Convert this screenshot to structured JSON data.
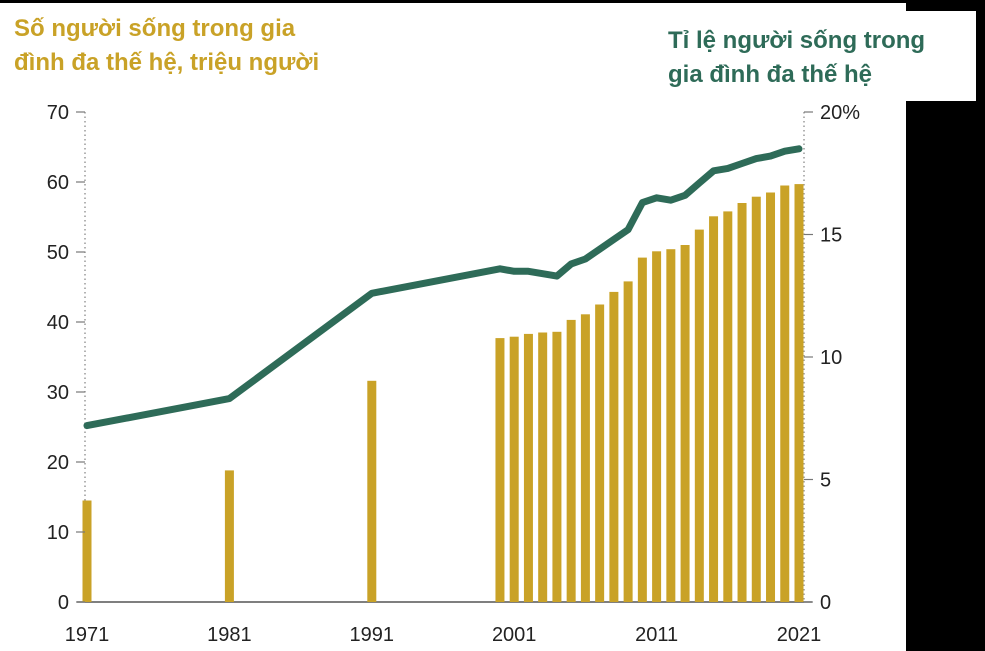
{
  "chart_data": {
    "type": "bar+line",
    "left_title": "Số người sống trong gia đình đa thế hệ, triệu người",
    "right_title": "Tỉ lệ người sống trong gia đình đa thế hệ",
    "left_title_lines": [
      "Số người sống trong gia",
      "đình đa thế hệ, triệu người"
    ],
    "right_title_lines": [
      "Tỉ lệ người sống trong",
      "gia đình đa thế hệ"
    ],
    "x_ticks": [
      1971,
      1981,
      1991,
      2001,
      2011,
      2021
    ],
    "x_tick_labels": [
      "1971",
      "1981",
      "1991",
      "2001",
      "2011",
      "2021"
    ],
    "left_axis": {
      "min": 0,
      "max": 70,
      "ticks": [
        0,
        10,
        20,
        30,
        40,
        50,
        60,
        70
      ],
      "tick_labels": [
        "0",
        "10",
        "20",
        "30",
        "40",
        "50",
        "60",
        "70"
      ]
    },
    "right_axis": {
      "min": 0,
      "max": 20,
      "ticks": [
        0,
        5,
        10,
        15,
        20
      ],
      "tick_labels": [
        "0",
        "5",
        "10",
        "15",
        "20%"
      ]
    },
    "bar_series": {
      "name": "Số người sống trong gia đình đa thế hệ, triệu người",
      "color": "#c9a227",
      "points": [
        {
          "year": 1971,
          "value": 14.5
        },
        {
          "year": 1981,
          "value": 18.8
        },
        {
          "year": 1991,
          "value": 31.6
        },
        {
          "year": 2000,
          "value": 37.7
        },
        {
          "year": 2001,
          "value": 37.9
        },
        {
          "year": 2002,
          "value": 38.3
        },
        {
          "year": 2003,
          "value": 38.5
        },
        {
          "year": 2004,
          "value": 38.6
        },
        {
          "year": 2005,
          "value": 40.3
        },
        {
          "year": 2006,
          "value": 41.1
        },
        {
          "year": 2007,
          "value": 42.5
        },
        {
          "year": 2008,
          "value": 44.3
        },
        {
          "year": 2009,
          "value": 45.8
        },
        {
          "year": 2010,
          "value": 49.2
        },
        {
          "year": 2011,
          "value": 50.1
        },
        {
          "year": 2012,
          "value": 50.4
        },
        {
          "year": 2013,
          "value": 51.0
        },
        {
          "year": 2014,
          "value": 53.2
        },
        {
          "year": 2015,
          "value": 55.1
        },
        {
          "year": 2016,
          "value": 55.8
        },
        {
          "year": 2017,
          "value": 57.0
        },
        {
          "year": 2018,
          "value": 57.9
        },
        {
          "year": 2019,
          "value": 58.5
        },
        {
          "year": 2020,
          "value": 59.5
        },
        {
          "year": 2021,
          "value": 59.7
        }
      ]
    },
    "line_series": {
      "name": "Tỉ lệ người sống trong gia đình đa thế hệ",
      "color": "#2e6b58",
      "points": [
        {
          "year": 1971,
          "value": 7.2
        },
        {
          "year": 1981,
          "value": 8.3
        },
        {
          "year": 1991,
          "value": 12.6
        },
        {
          "year": 2000,
          "value": 13.6
        },
        {
          "year": 2001,
          "value": 13.5
        },
        {
          "year": 2002,
          "value": 13.5
        },
        {
          "year": 2003,
          "value": 13.4
        },
        {
          "year": 2004,
          "value": 13.3
        },
        {
          "year": 2005,
          "value": 13.8
        },
        {
          "year": 2006,
          "value": 14.0
        },
        {
          "year": 2007,
          "value": 14.4
        },
        {
          "year": 2008,
          "value": 14.8
        },
        {
          "year": 2009,
          "value": 15.2
        },
        {
          "year": 2010,
          "value": 16.3
        },
        {
          "year": 2011,
          "value": 16.5
        },
        {
          "year": 2012,
          "value": 16.4
        },
        {
          "year": 2013,
          "value": 16.6
        },
        {
          "year": 2014,
          "value": 17.1
        },
        {
          "year": 2015,
          "value": 17.6
        },
        {
          "year": 2016,
          "value": 17.7
        },
        {
          "year": 2017,
          "value": 17.9
        },
        {
          "year": 2018,
          "value": 18.1
        },
        {
          "year": 2019,
          "value": 18.2
        },
        {
          "year": 2020,
          "value": 18.4
        },
        {
          "year": 2021,
          "value": 18.5
        }
      ]
    }
  }
}
